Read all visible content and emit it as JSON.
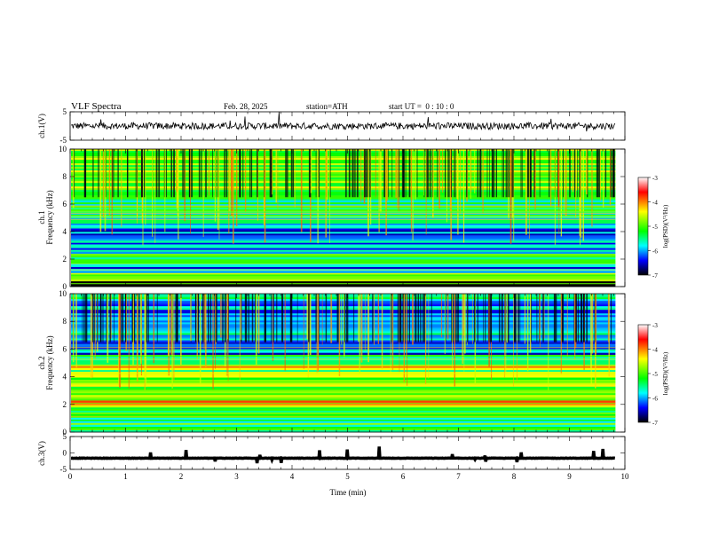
{
  "header": {
    "title": "VLF Spectra",
    "date": "Feb. 28, 2025",
    "station": "station=ATH",
    "start": "start UT =  0 : 10 : 0"
  },
  "colorbar": {
    "label": "log(PSD)(V²/Hz)",
    "ticks": [
      "-3",
      "-4",
      "-5",
      "-6",
      "-7"
    ],
    "colors": [
      "#ffffff",
      "#ff0000",
      "#ffff00",
      "#00ff00",
      "#00ffff",
      "#0000ff",
      "#000000"
    ]
  },
  "chart_data": [
    {
      "type": "line",
      "name": "ch1-waveform",
      "ylabel": "ch.1(V)",
      "ylim": [
        -5,
        5
      ],
      "yticks": [
        "5",
        "-5"
      ],
      "xlim": [
        0,
        10
      ],
      "baseline": 0,
      "x_data_end": 9.83
    },
    {
      "type": "heatmap",
      "name": "ch1-spectrogram",
      "ylabel": "ch.1\nFrequency (kHz)",
      "ylim": [
        0,
        10
      ],
      "yticks": [
        "0",
        "2",
        "4",
        "6",
        "8",
        "10"
      ],
      "xlim": [
        0,
        10
      ],
      "x_data_end": 9.83,
      "clim": [
        -7,
        -3
      ],
      "bands": [
        {
          "from": 0.0,
          "to": 0.4,
          "level": -7.0
        },
        {
          "from": 0.4,
          "to": 1.0,
          "level": -4.6
        },
        {
          "from": 1.0,
          "to": 1.7,
          "level": -6.2
        },
        {
          "from": 1.7,
          "to": 2.4,
          "level": -5.3
        },
        {
          "from": 2.4,
          "to": 3.2,
          "level": -6.1
        },
        {
          "from": 3.2,
          "to": 3.6,
          "level": -5.6
        },
        {
          "from": 3.6,
          "to": 4.6,
          "level": -6.2
        },
        {
          "from": 4.6,
          "to": 6.5,
          "level": -5.5
        },
        {
          "from": 6.5,
          "to": 10.0,
          "level": -4.9
        }
      ]
    },
    {
      "type": "heatmap",
      "name": "ch2-spectrogram",
      "ylabel": "ch.2\nFrequency (kHz)",
      "ylim": [
        0,
        10
      ],
      "yticks": [
        "0",
        "2",
        "4",
        "6",
        "8",
        "10"
      ],
      "xlim": [
        0,
        10
      ],
      "x_data_end": 9.83,
      "clim": [
        -7,
        -3
      ],
      "bands": [
        {
          "from": 0.0,
          "to": 0.4,
          "level": -5.0
        },
        {
          "from": 0.4,
          "to": 1.8,
          "level": -5.3
        },
        {
          "from": 1.8,
          "to": 2.3,
          "level": -4.0
        },
        {
          "from": 2.3,
          "to": 3.3,
          "level": -5.0
        },
        {
          "from": 3.3,
          "to": 3.8,
          "level": -4.4
        },
        {
          "from": 3.8,
          "to": 4.5,
          "level": -5.0
        },
        {
          "from": 4.5,
          "to": 4.9,
          "level": -4.5
        },
        {
          "from": 4.9,
          "to": 5.6,
          "level": -5.3
        },
        {
          "from": 5.6,
          "to": 6.5,
          "level": -6.0
        },
        {
          "from": 6.5,
          "to": 10.0,
          "level": -5.9
        }
      ]
    },
    {
      "type": "line",
      "name": "ch3-waveform",
      "ylabel": "ch.3(V)",
      "ylim": [
        -5,
        5
      ],
      "yticks": [
        "5",
        "0",
        "-5"
      ],
      "xlim": [
        0,
        10
      ],
      "xticks": [
        "0",
        "1",
        "2",
        "3",
        "4",
        "5",
        "6",
        "7",
        "8",
        "9",
        "10"
      ],
      "xlabel": "Time (min)",
      "baseline": -1.6,
      "x_data_end": 9.83
    }
  ]
}
